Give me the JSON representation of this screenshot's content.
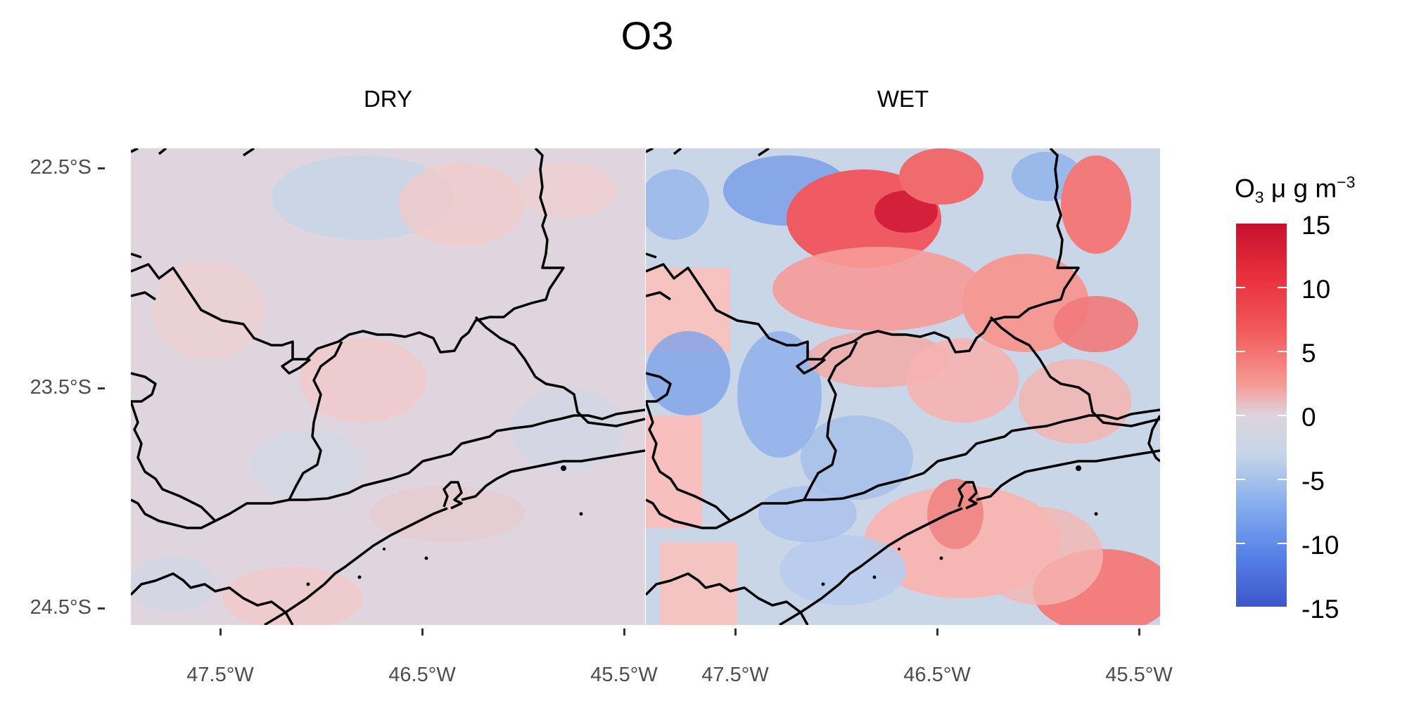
{
  "title": "O3",
  "facets": [
    {
      "label": "DRY"
    },
    {
      "label": "WET"
    }
  ],
  "y_axis": {
    "ticks": [
      "22.5°S",
      "23.5°S",
      "24.5°S"
    ]
  },
  "x_axis": {
    "ticks": [
      "47.5°W",
      "46.5°W",
      "45.5°W"
    ]
  },
  "legend": {
    "title_main": "O",
    "title_sub": "3",
    "title_mid": " μ g m",
    "title_sup": "−3",
    "labels": [
      "15",
      "10",
      "5",
      "0",
      "-5",
      "-10",
      "-15"
    ],
    "range": [
      -15,
      15
    ]
  },
  "colors": {
    "high": "#c8102e",
    "mid": "#dcd3dc",
    "low": "#3d56cc",
    "border": "#000000"
  }
}
